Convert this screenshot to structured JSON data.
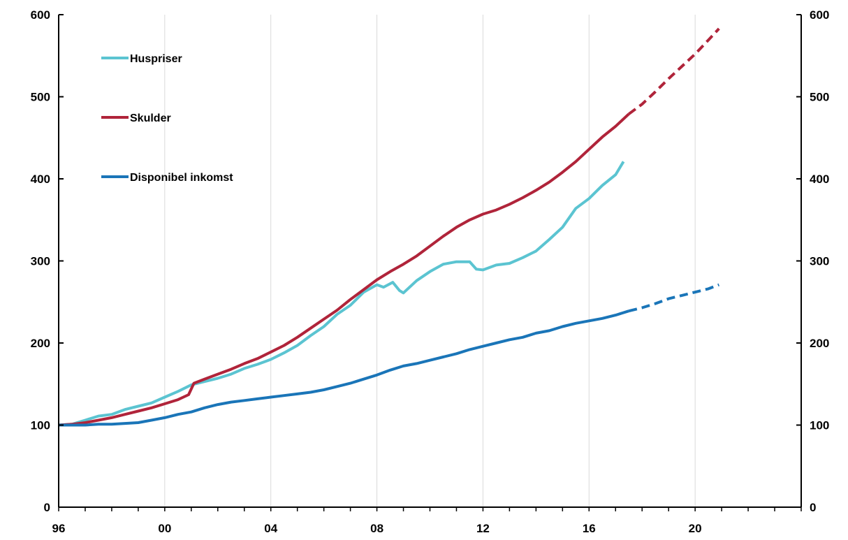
{
  "chart_data": {
    "type": "line",
    "title": "",
    "xlabel": "",
    "ylabel": "",
    "xlim": [
      1996,
      2024
    ],
    "ylim": [
      0,
      600
    ],
    "y_ticks": [
      0,
      100,
      200,
      300,
      400,
      500,
      600
    ],
    "y_tick_labels": [
      "0",
      "100",
      "200",
      "300",
      "400",
      "500",
      "600"
    ],
    "x_ticks": [
      1996,
      2000,
      2004,
      2008,
      2012,
      2016,
      2020
    ],
    "x_tick_labels": [
      "96",
      "00",
      "04",
      "08",
      "12",
      "16",
      "20"
    ],
    "grid": "vertical",
    "legend": {
      "placement": "top-left",
      "entries": [
        "Huspriser",
        "Skulder",
        "Disponibel inkomst"
      ]
    },
    "series": [
      {
        "name": "Huspriser",
        "color": "#5bc4d1",
        "style": "solid",
        "points": [
          [
            1996.0,
            100
          ],
          [
            1996.5,
            101
          ],
          [
            1997.0,
            106
          ],
          [
            1997.5,
            111
          ],
          [
            1998.0,
            113
          ],
          [
            1998.5,
            119
          ],
          [
            1999.0,
            123
          ],
          [
            1999.5,
            127
          ],
          [
            2000.0,
            134
          ],
          [
            2000.5,
            141
          ],
          [
            2001.0,
            149
          ],
          [
            2001.5,
            153
          ],
          [
            2002.0,
            157
          ],
          [
            2002.5,
            162
          ],
          [
            2003.0,
            169
          ],
          [
            2003.5,
            174
          ],
          [
            2004.0,
            180
          ],
          [
            2004.5,
            188
          ],
          [
            2005.0,
            197
          ],
          [
            2005.5,
            209
          ],
          [
            2006.0,
            220
          ],
          [
            2006.5,
            235
          ],
          [
            2007.0,
            246
          ],
          [
            2007.5,
            262
          ],
          [
            2008.0,
            271
          ],
          [
            2008.25,
            268
          ],
          [
            2008.6,
            274
          ],
          [
            2008.85,
            264
          ],
          [
            2009.0,
            261
          ],
          [
            2009.5,
            276
          ],
          [
            2010.0,
            287
          ],
          [
            2010.5,
            296
          ],
          [
            2011.0,
            299
          ],
          [
            2011.5,
            299
          ],
          [
            2011.75,
            290
          ],
          [
            2012.0,
            289
          ],
          [
            2012.5,
            295
          ],
          [
            2013.0,
            297
          ],
          [
            2013.5,
            304
          ],
          [
            2014.0,
            312
          ],
          [
            2014.5,
            326
          ],
          [
            2015.0,
            341
          ],
          [
            2015.5,
            364
          ],
          [
            2016.0,
            376
          ],
          [
            2016.5,
            392
          ],
          [
            2017.0,
            405
          ],
          [
            2017.3,
            421
          ]
        ]
      },
      {
        "name": "Skulder",
        "color": "#b0243a",
        "style": "solid",
        "points": [
          [
            1996.0,
            100
          ],
          [
            1996.5,
            101
          ],
          [
            1997.0,
            103
          ],
          [
            1997.5,
            106
          ],
          [
            1998.0,
            109
          ],
          [
            1998.5,
            113
          ],
          [
            1999.0,
            117
          ],
          [
            1999.5,
            121
          ],
          [
            2000.0,
            126
          ],
          [
            2000.5,
            131
          ],
          [
            2000.9,
            137
          ],
          [
            2001.1,
            151
          ],
          [
            2001.5,
            156
          ],
          [
            2002.0,
            162
          ],
          [
            2002.5,
            168
          ],
          [
            2003.0,
            175
          ],
          [
            2003.5,
            181
          ],
          [
            2004.0,
            189
          ],
          [
            2004.5,
            197
          ],
          [
            2005.0,
            207
          ],
          [
            2005.5,
            218
          ],
          [
            2006.0,
            229
          ],
          [
            2006.5,
            240
          ],
          [
            2007.0,
            253
          ],
          [
            2007.5,
            265
          ],
          [
            2008.0,
            277
          ],
          [
            2008.5,
            287
          ],
          [
            2009.0,
            296
          ],
          [
            2009.5,
            306
          ],
          [
            2010.0,
            318
          ],
          [
            2010.5,
            330
          ],
          [
            2011.0,
            341
          ],
          [
            2011.5,
            350
          ],
          [
            2012.0,
            357
          ],
          [
            2012.5,
            362
          ],
          [
            2013.0,
            369
          ],
          [
            2013.5,
            377
          ],
          [
            2014.0,
            386
          ],
          [
            2014.5,
            396
          ],
          [
            2015.0,
            408
          ],
          [
            2015.5,
            421
          ],
          [
            2016.0,
            436
          ],
          [
            2016.5,
            451
          ],
          [
            2017.0,
            464
          ],
          [
            2017.5,
            479
          ]
        ]
      },
      {
        "name": "Skulder prognos",
        "color": "#b0243a",
        "style": "dashed",
        "points": [
          [
            2017.5,
            479
          ],
          [
            2018.0,
            491
          ],
          [
            2018.5,
            506
          ],
          [
            2019.0,
            522
          ],
          [
            2019.5,
            537
          ],
          [
            2020.0,
            552
          ],
          [
            2020.5,
            569
          ],
          [
            2020.9,
            583
          ]
        ]
      },
      {
        "name": "Disponibel inkomst",
        "color": "#1a75b8",
        "style": "solid",
        "points": [
          [
            1996.0,
            100
          ],
          [
            1996.5,
            100
          ],
          [
            1997.0,
            100
          ],
          [
            1997.5,
            101
          ],
          [
            1998.0,
            101
          ],
          [
            1998.5,
            102
          ],
          [
            1999.0,
            103
          ],
          [
            1999.5,
            106
          ],
          [
            2000.0,
            109
          ],
          [
            2000.5,
            113
          ],
          [
            2001.0,
            116
          ],
          [
            2001.5,
            121
          ],
          [
            2002.0,
            125
          ],
          [
            2002.5,
            128
          ],
          [
            2003.0,
            130
          ],
          [
            2003.5,
            132
          ],
          [
            2004.0,
            134
          ],
          [
            2004.5,
            136
          ],
          [
            2005.0,
            138
          ],
          [
            2005.5,
            140
          ],
          [
            2006.0,
            143
          ],
          [
            2006.5,
            147
          ],
          [
            2007.0,
            151
          ],
          [
            2007.5,
            156
          ],
          [
            2008.0,
            161
          ],
          [
            2008.5,
            167
          ],
          [
            2009.0,
            172
          ],
          [
            2009.5,
            175
          ],
          [
            2010.0,
            179
          ],
          [
            2010.5,
            183
          ],
          [
            2011.0,
            187
          ],
          [
            2011.5,
            192
          ],
          [
            2012.0,
            196
          ],
          [
            2012.5,
            200
          ],
          [
            2013.0,
            204
          ],
          [
            2013.5,
            207
          ],
          [
            2014.0,
            212
          ],
          [
            2014.5,
            215
          ],
          [
            2015.0,
            220
          ],
          [
            2015.5,
            224
          ],
          [
            2016.0,
            227
          ],
          [
            2016.5,
            230
          ],
          [
            2017.0,
            234
          ],
          [
            2017.5,
            239
          ]
        ]
      },
      {
        "name": "Disponibel inkomst prognos",
        "color": "#1a75b8",
        "style": "dashed",
        "points": [
          [
            2017.5,
            239
          ],
          [
            2018.0,
            243
          ],
          [
            2018.5,
            248
          ],
          [
            2019.0,
            254
          ],
          [
            2019.5,
            258
          ],
          [
            2020.0,
            262
          ],
          [
            2020.5,
            266
          ],
          [
            2020.9,
            271
          ]
        ]
      }
    ]
  }
}
